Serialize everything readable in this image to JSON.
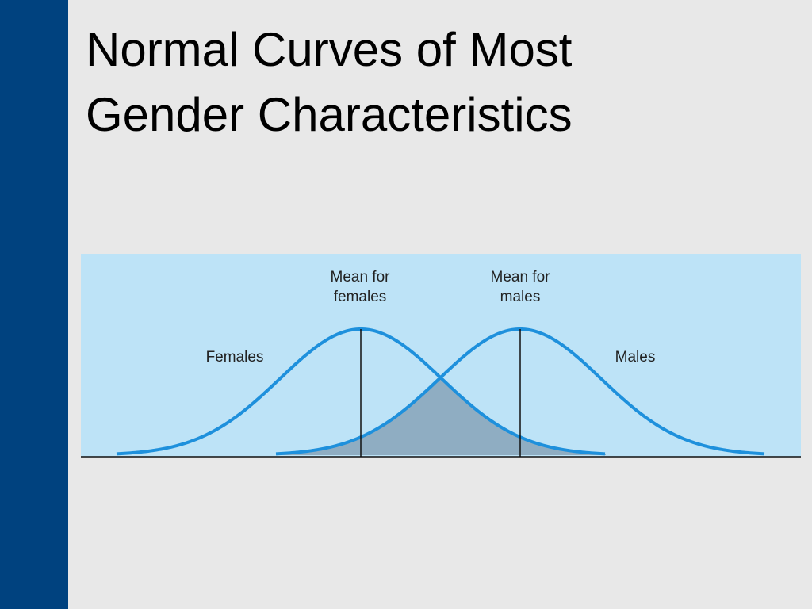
{
  "header": {
    "title_lines": [
      "Normal Curves of Most",
      "Gender Characteristics"
    ]
  },
  "diagram": {
    "mean_females": [
      "Mean for",
      "females"
    ],
    "mean_males": [
      "Mean for",
      "males"
    ],
    "females": "Females",
    "males": "Males"
  }
}
